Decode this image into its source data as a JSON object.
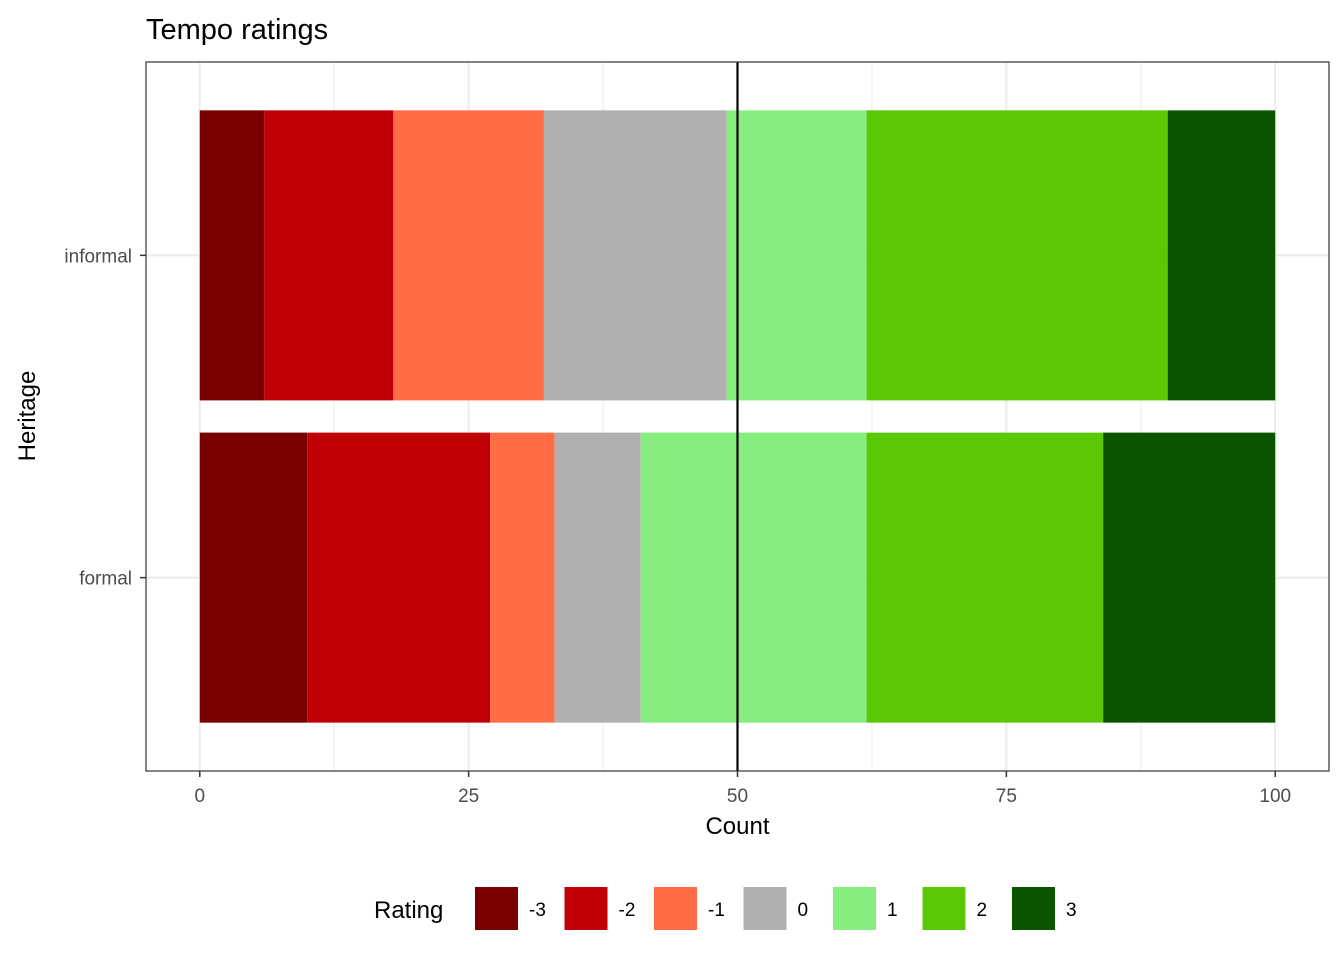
{
  "chart_data": {
    "type": "bar",
    "orientation": "horizontal",
    "stacked": true,
    "title": "Tempo ratings",
    "xlabel": "Count",
    "ylabel": "Heritage",
    "categories": [
      "informal",
      "formal"
    ],
    "xlim": [
      -5,
      105
    ],
    "xticks": [
      0,
      25,
      50,
      75,
      100
    ],
    "xtick_labels": [
      "0",
      "25",
      "50",
      "75",
      "100"
    ],
    "reference_line": 50,
    "grid": true,
    "legend": {
      "title": "Rating",
      "position": "bottom"
    },
    "series": [
      {
        "name": "-3",
        "color": "#7a0000",
        "values": [
          6,
          10
        ]
      },
      {
        "name": "-2",
        "color": "#c00007",
        "values": [
          12,
          17
        ]
      },
      {
        "name": "-1",
        "color": "#ff6c45",
        "values": [
          14,
          6
        ]
      },
      {
        "name": "0",
        "color": "#b0b0b0",
        "values": [
          17,
          8
        ]
      },
      {
        "name": "1",
        "color": "#85ee7e",
        "values": [
          13,
          21
        ]
      },
      {
        "name": "2",
        "color": "#5ac806",
        "values": [
          28,
          22
        ]
      },
      {
        "name": "3",
        "color": "#0c5500",
        "values": [
          10,
          16
        ]
      }
    ]
  }
}
